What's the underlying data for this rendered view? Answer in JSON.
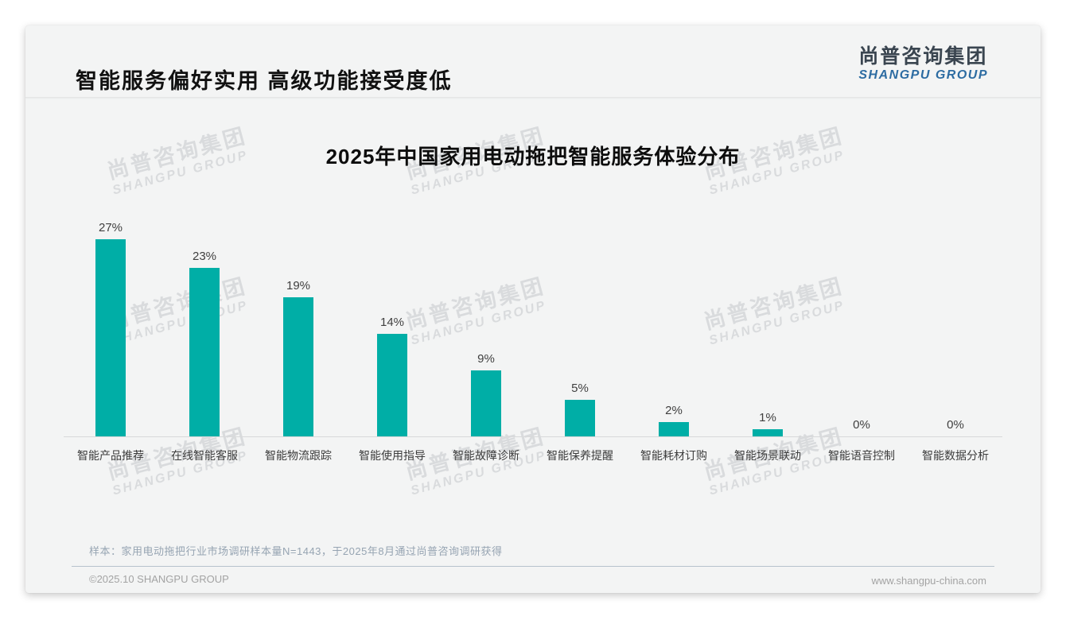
{
  "page": {
    "title": "智能服务偏好实用 高级功能接受度低"
  },
  "logo": {
    "cn": "尚普咨询集团",
    "en": "SHANGPU GROUP"
  },
  "watermark": {
    "cn": "尚普咨询集团",
    "en": "SHANGPU GROUP"
  },
  "chart_data": {
    "type": "bar",
    "title": "2025年中国家用电动拖把智能服务体验分布",
    "categories": [
      "智能产品推荐",
      "在线智能客服",
      "智能物流跟踪",
      "智能使用指导",
      "智能故障诊断",
      "智能保养提醒",
      "智能耗材订购",
      "智能场景联动",
      "智能语音控制",
      "智能数据分析"
    ],
    "values": [
      27,
      23,
      19,
      14,
      9,
      5,
      2,
      1,
      0,
      0
    ],
    "value_labels": [
      "27%",
      "23%",
      "19%",
      "14%",
      "9%",
      "5%",
      "2%",
      "1%",
      "0%",
      "0%"
    ],
    "unit": "%",
    "bar_color": "#00AEA6",
    "ylim": [
      0,
      30
    ],
    "grid": false,
    "legend": false,
    "value_labels_shown": true
  },
  "footnote": "样本：家用电动拖把行业市场调研样本量N=1443，于2025年8月通过尚普咨询调研获得",
  "footer": {
    "copyright": "©2025.10 SHANGPU GROUP",
    "website": "www.shangpu-china.com"
  },
  "colors": {
    "accent": "#00AEA6",
    "logo_blue": "#2D6CA2",
    "card_bg": "#F3F4F4",
    "axis_line": "#D8D9DA"
  }
}
